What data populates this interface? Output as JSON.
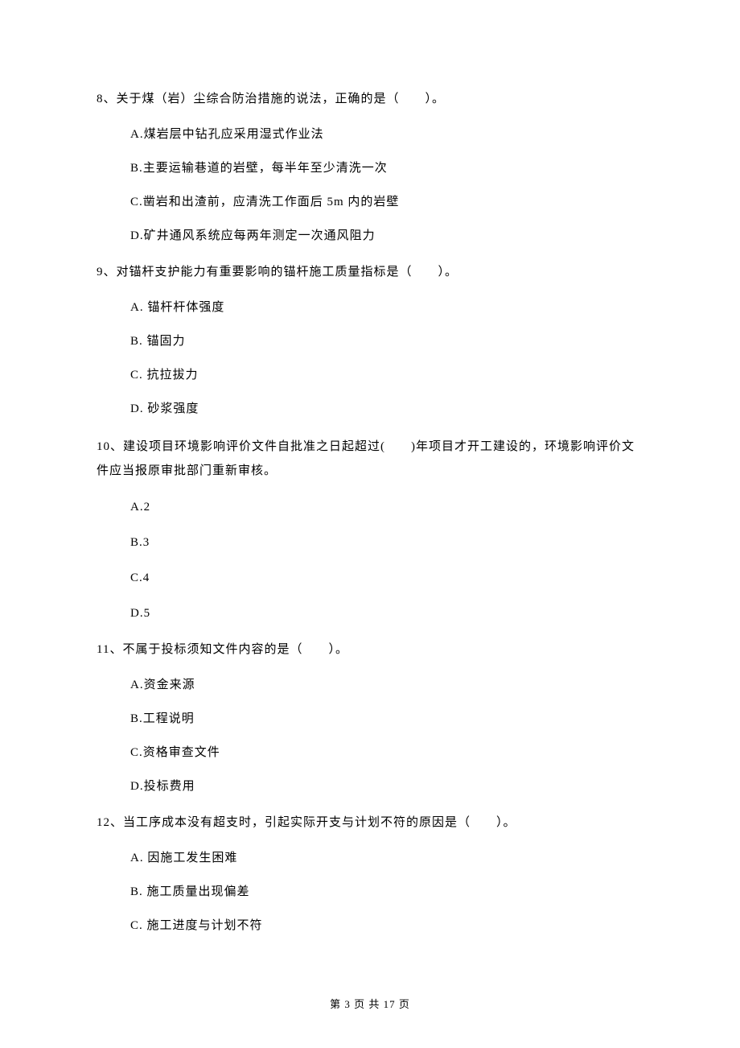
{
  "questions": {
    "q8": {
      "text": "8、关于煤（岩）尘综合防治措施的说法，正确的是（　　）。",
      "options": {
        "a": "A.煤岩层中钻孔应采用湿式作业法",
        "b": "B.主要运输巷道的岩壁，每半年至少清洗一次",
        "c": "C.凿岩和出渣前，应清洗工作面后 5m 内的岩壁",
        "d": "D.矿井通风系统应每两年测定一次通风阻力"
      }
    },
    "q9": {
      "text": "9、对锚杆支护能力有重要影响的锚杆施工质量指标是（　　）。",
      "options": {
        "a": "A.  锚杆杆体强度",
        "b": "B.  锚固力",
        "c": "C.  抗拉拔力",
        "d": "D.  砂浆强度"
      }
    },
    "q10": {
      "text": "10、建设项目环境影响评价文件自批准之日起超过(　　)年项目才开工建设的，环境影响评价文件应当报原审批部门重新审核。",
      "options": {
        "a": "A.2",
        "b": "B.3",
        "c": "C.4",
        "d": "D.5"
      }
    },
    "q11": {
      "text": "11、不属于投标须知文件内容的是（　　）。",
      "options": {
        "a": "A.资金来源",
        "b": "B.工程说明",
        "c": "C.资格审查文件",
        "d": "D.投标费用"
      }
    },
    "q12": {
      "text": "12、当工序成本没有超支时，引起实际开支与计划不符的原因是（　　）。",
      "options": {
        "a": "A.  因施工发生困难",
        "b": "B.  施工质量出现偏差",
        "c": "C.  施工进度与计划不符"
      }
    }
  },
  "footer": "第 3 页 共 17 页"
}
